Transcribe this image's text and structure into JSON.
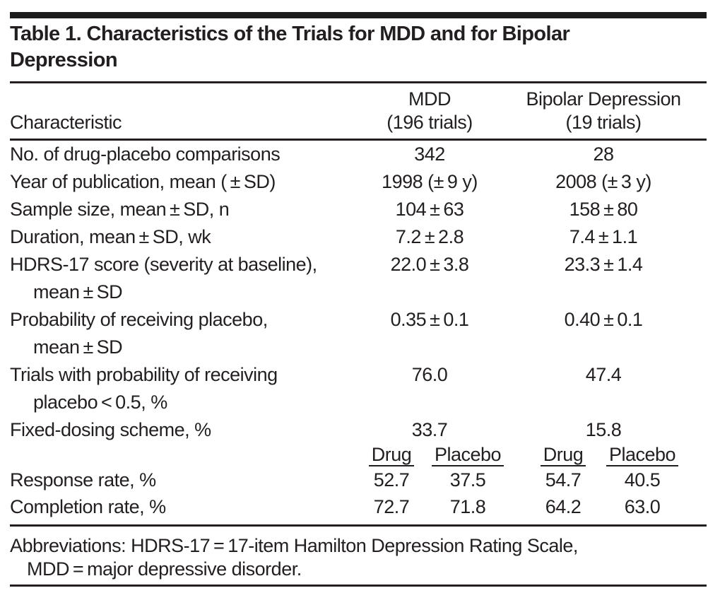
{
  "title_line1": "Table 1. Characteristics of the Trials for MDD and for Bipolar",
  "title_line2": "Depression",
  "header": {
    "characteristic": "Characteristic",
    "mdd_line1": "MDD",
    "mdd_line2": "(196 trials)",
    "bipolar_line1": "Bipolar Depression",
    "bipolar_line2": "(19 trials)"
  },
  "rows": [
    {
      "label": "No. of drug-placebo comparisons",
      "mdd": "342",
      "bipolar": "28"
    },
    {
      "label": "Year of publication, mean ( ± SD)",
      "mdd": "1998 (± 9 y)",
      "bipolar": "2008 (± 3 y)"
    },
    {
      "label": "Sample size, mean ± SD, n",
      "mdd": "104 ± 63",
      "bipolar": "158 ± 80"
    },
    {
      "label": "Duration, mean ± SD, wk",
      "mdd": "7.2 ± 2.8",
      "bipolar": "7.4 ± 1.1"
    },
    {
      "label": "HDRS-17 score (severity at baseline),",
      "label_line2": "mean ± SD",
      "mdd": "22.0 ± 3.8",
      "bipolar": "23.3 ± 1.4"
    },
    {
      "label": "Probability of receiving placebo,",
      "label_line2": "mean ± SD",
      "mdd": "0.35 ± 0.1",
      "bipolar": "0.40 ± 0.1"
    },
    {
      "label": "Trials with probability of receiving",
      "label_line2": "placebo < 0.5, %",
      "mdd": "76.0",
      "bipolar": "47.4"
    },
    {
      "label": "Fixed-dosing scheme, %",
      "mdd": "33.7",
      "bipolar": "15.8"
    }
  ],
  "subheader": {
    "drug": "Drug",
    "placebo": "Placebo"
  },
  "rate_rows": [
    {
      "label": "Response rate, %",
      "mdd_drug": "52.7",
      "mdd_placebo": "37.5",
      "bipolar_drug": "54.7",
      "bipolar_placebo": "40.5"
    },
    {
      "label": "Completion rate, %",
      "mdd_drug": "72.7",
      "mdd_placebo": "71.8",
      "bipolar_drug": "64.2",
      "bipolar_placebo": "63.0"
    }
  ],
  "footnote_line1": "Abbreviations: HDRS-17 = 17-item Hamilton Depression Rating Scale,",
  "footnote_line2": "MDD = major depressive disorder."
}
